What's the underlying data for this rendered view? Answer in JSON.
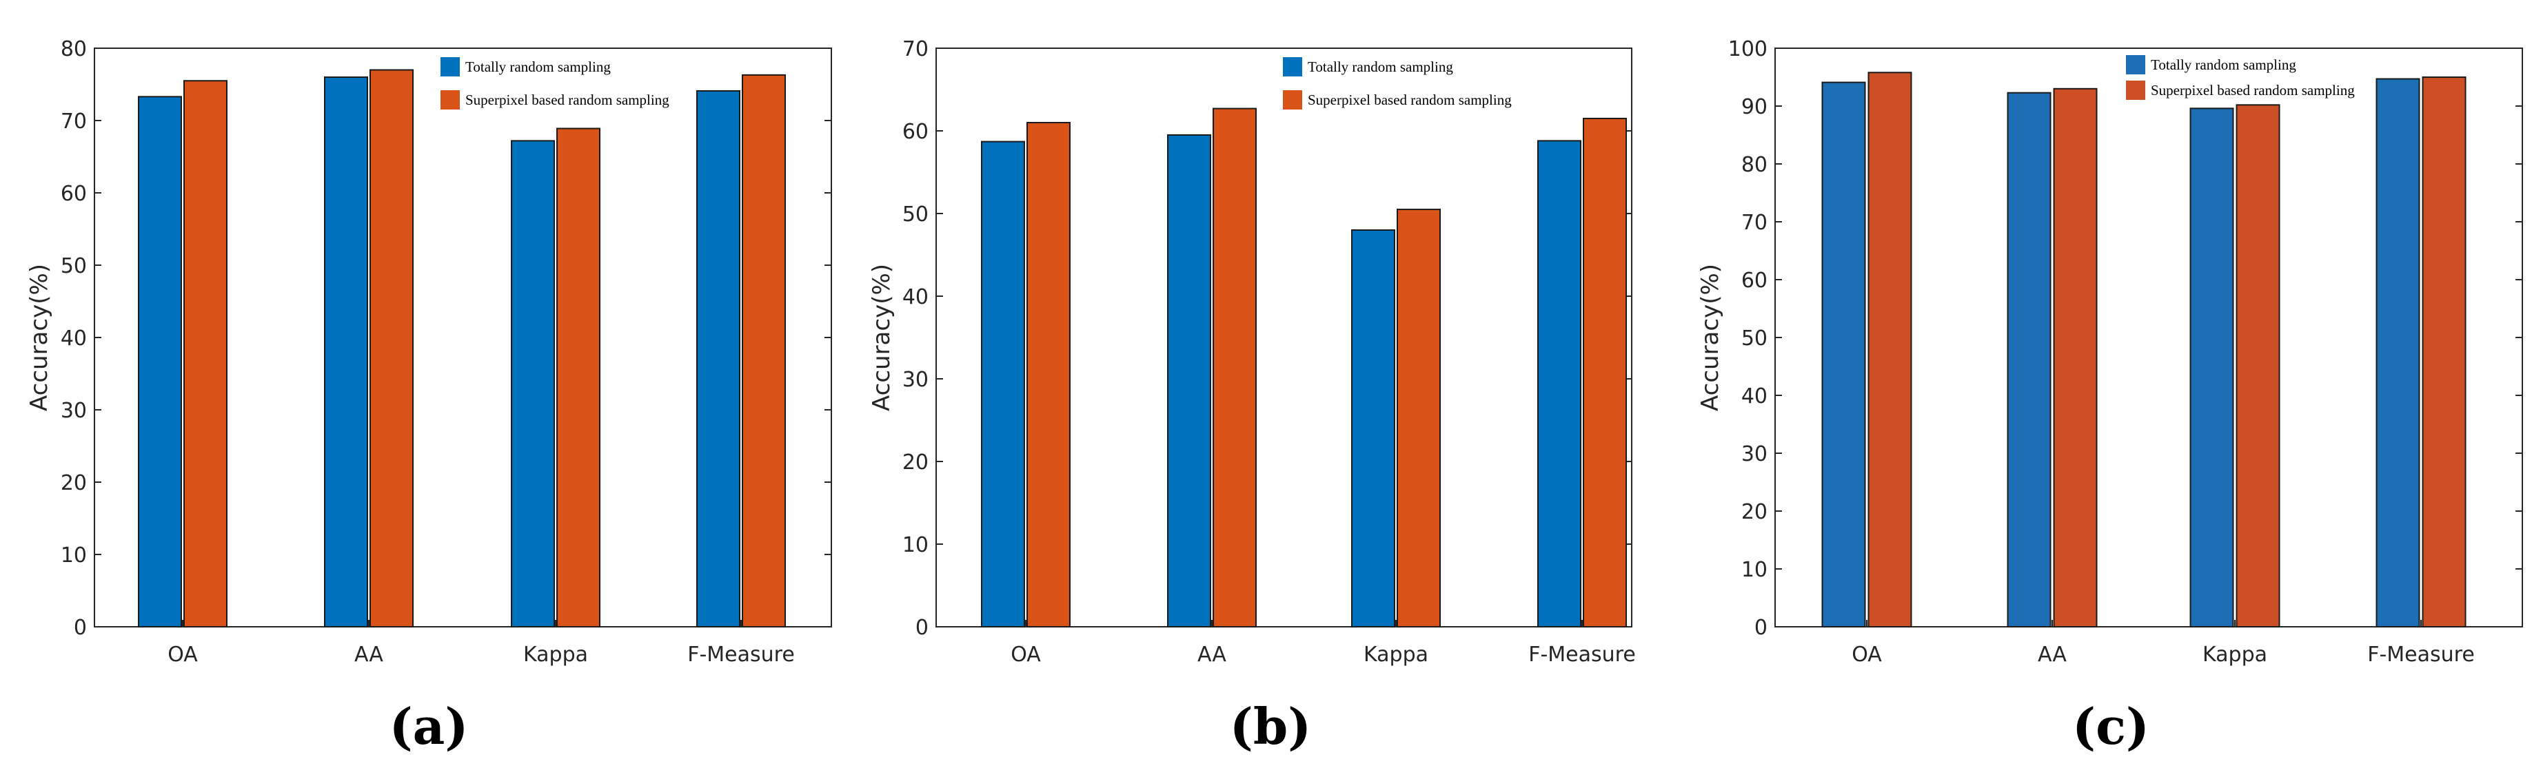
{
  "figure": {
    "series_colors": [
      "#0072BD",
      "#D95319"
    ],
    "series_colors_panel_c": [
      "#1C6FB5",
      "#CC4F25"
    ]
  },
  "chart_data": [
    {
      "type": "bar",
      "panel_label": "(a)",
      "categories": [
        "OA",
        "AA",
        "Kappa",
        "F-Measure"
      ],
      "series": [
        {
          "name": "Totally random sampling",
          "values": [
            73.3,
            76.0,
            67.2,
            74.1
          ]
        },
        {
          "name": "Superpixel based random sampling",
          "values": [
            75.5,
            77.0,
            68.9,
            76.3
          ]
        }
      ],
      "ylabel": "Accuracy(%)",
      "xlabel": "",
      "ylim": [
        0,
        80
      ],
      "yticks": [
        0,
        10,
        20,
        30,
        40,
        50,
        60,
        70,
        80
      ],
      "legend": "top-right"
    },
    {
      "type": "bar",
      "panel_label": "(b)",
      "categories": [
        "OA",
        "AA",
        "Kappa",
        "F-Measure"
      ],
      "series": [
        {
          "name": "Totally random sampling",
          "values": [
            58.7,
            59.5,
            48.0,
            58.8
          ]
        },
        {
          "name": "Superpixel based random sampling",
          "values": [
            61.0,
            62.7,
            50.5,
            61.5
          ]
        }
      ],
      "ylabel": "Accuracy(%)",
      "xlabel": "",
      "ylim": [
        0,
        70
      ],
      "yticks": [
        0,
        10,
        20,
        30,
        40,
        50,
        60,
        70
      ],
      "legend": "top-right"
    },
    {
      "type": "bar",
      "panel_label": "(c)",
      "categories": [
        "OA",
        "AA",
        "Kappa",
        "F-Measure"
      ],
      "series": [
        {
          "name": "Totally random sampling",
          "values": [
            94.1,
            92.3,
            89.6,
            94.7
          ]
        },
        {
          "name": "Superpixel based random sampling",
          "values": [
            95.8,
            93.0,
            90.2,
            95.0
          ]
        }
      ],
      "ylabel": "Accuracy(%)",
      "xlabel": "",
      "ylim": [
        0,
        100
      ],
      "yticks": [
        0,
        10,
        20,
        30,
        40,
        50,
        60,
        70,
        80,
        90,
        100
      ],
      "legend": "top-right"
    }
  ]
}
